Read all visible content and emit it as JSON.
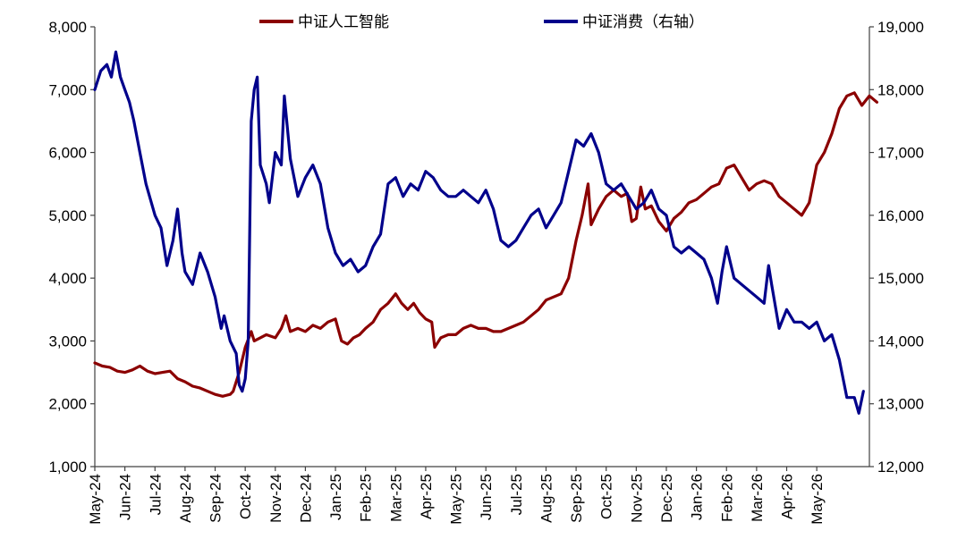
{
  "chart_data": {
    "type": "line",
    "title": "",
    "legend_position": "top",
    "grid": false,
    "categories": [
      "May-24",
      "Jun-24",
      "Jul-24",
      "Aug-24",
      "Sep-24",
      "Oct-24",
      "Nov-24",
      "Dec-24",
      "Jan-25",
      "Feb-25",
      "Mar-25",
      "Apr-25",
      "May-25",
      "Jun-25",
      "Jul-25",
      "Aug-25",
      "Sep-25",
      "Oct-25",
      "Nov-25",
      "Dec-25",
      "Jan-26",
      "Feb-26",
      "Mar-26",
      "Apr-26",
      "May-26"
    ],
    "y_left": {
      "ylim": [
        1000,
        8000
      ],
      "ticks": [
        1000,
        2000,
        3000,
        4000,
        5000,
        6000,
        7000,
        8000
      ],
      "tick_labels": [
        "1,000",
        "2,000",
        "3,000",
        "4,000",
        "5,000",
        "6,000",
        "7,000",
        "8,000"
      ]
    },
    "y_right": {
      "ylim": [
        12000,
        19000
      ],
      "ticks": [
        12000,
        13000,
        14000,
        15000,
        16000,
        17000,
        18000,
        19000
      ],
      "tick_labels": [
        "12,000",
        "13,000",
        "14,000",
        "15,000",
        "16,000",
        "17,000",
        "18,000",
        "19,000"
      ]
    },
    "series": [
      {
        "name": "中证人工智能",
        "axis": "left",
        "color": "#8B0000",
        "points": [
          [
            0,
            2650
          ],
          [
            0.25,
            2600
          ],
          [
            0.5,
            2580
          ],
          [
            0.75,
            2520
          ],
          [
            1,
            2500
          ],
          [
            1.25,
            2540
          ],
          [
            1.5,
            2600
          ],
          [
            1.75,
            2520
          ],
          [
            2,
            2480
          ],
          [
            2.25,
            2500
          ],
          [
            2.5,
            2520
          ],
          [
            2.75,
            2400
          ],
          [
            3,
            2350
          ],
          [
            3.25,
            2280
          ],
          [
            3.5,
            2250
          ],
          [
            3.75,
            2200
          ],
          [
            4,
            2150
          ],
          [
            4.25,
            2120
          ],
          [
            4.5,
            2150
          ],
          [
            4.6,
            2200
          ],
          [
            4.8,
            2500
          ],
          [
            5,
            2900
          ],
          [
            5.2,
            3150
          ],
          [
            5.3,
            3000
          ],
          [
            5.5,
            3050
          ],
          [
            5.7,
            3100
          ],
          [
            6,
            3050
          ],
          [
            6.2,
            3200
          ],
          [
            6.35,
            3400
          ],
          [
            6.5,
            3150
          ],
          [
            6.75,
            3200
          ],
          [
            7,
            3150
          ],
          [
            7.25,
            3250
          ],
          [
            7.5,
            3200
          ],
          [
            7.75,
            3300
          ],
          [
            8,
            3350
          ],
          [
            8.2,
            3000
          ],
          [
            8.4,
            2950
          ],
          [
            8.6,
            3050
          ],
          [
            8.8,
            3100
          ],
          [
            9,
            3200
          ],
          [
            9.25,
            3300
          ],
          [
            9.5,
            3500
          ],
          [
            9.75,
            3600
          ],
          [
            10,
            3750
          ],
          [
            10.2,
            3600
          ],
          [
            10.4,
            3500
          ],
          [
            10.6,
            3600
          ],
          [
            10.8,
            3450
          ],
          [
            11,
            3350
          ],
          [
            11.2,
            3300
          ],
          [
            11.3,
            2900
          ],
          [
            11.5,
            3050
          ],
          [
            11.75,
            3100
          ],
          [
            12,
            3100
          ],
          [
            12.25,
            3200
          ],
          [
            12.5,
            3250
          ],
          [
            12.75,
            3200
          ],
          [
            13,
            3200
          ],
          [
            13.25,
            3150
          ],
          [
            13.5,
            3150
          ],
          [
            13.75,
            3200
          ],
          [
            14,
            3250
          ],
          [
            14.25,
            3300
          ],
          [
            14.5,
            3400
          ],
          [
            14.75,
            3500
          ],
          [
            15,
            3650
          ],
          [
            15.25,
            3700
          ],
          [
            15.5,
            3750
          ],
          [
            15.75,
            4000
          ],
          [
            16,
            4600
          ],
          [
            16.2,
            5000
          ],
          [
            16.4,
            5500
          ],
          [
            16.5,
            4850
          ],
          [
            16.75,
            5100
          ],
          [
            17,
            5300
          ],
          [
            17.25,
            5400
          ],
          [
            17.5,
            5300
          ],
          [
            17.7,
            5350
          ],
          [
            17.85,
            4900
          ],
          [
            18,
            4950
          ],
          [
            18.15,
            5450
          ],
          [
            18.3,
            5100
          ],
          [
            18.5,
            5150
          ],
          [
            18.75,
            4900
          ],
          [
            19,
            4750
          ],
          [
            19.25,
            4950
          ],
          [
            19.5,
            5050
          ],
          [
            19.75,
            5200
          ],
          [
            20,
            5250
          ],
          [
            20.25,
            5350
          ],
          [
            20.5,
            5450
          ],
          [
            20.75,
            5500
          ],
          [
            21,
            5750
          ],
          [
            21.25,
            5800
          ],
          [
            21.5,
            5600
          ],
          [
            21.75,
            5400
          ],
          [
            22,
            5500
          ],
          [
            22.25,
            5550
          ],
          [
            22.5,
            5500
          ],
          [
            22.75,
            5300
          ],
          [
            23,
            5200
          ],
          [
            23.25,
            5100
          ],
          [
            23.5,
            5000
          ],
          [
            23.75,
            5200
          ],
          [
            24,
            5800
          ],
          [
            24.25,
            6000
          ],
          [
            24.5,
            6300
          ],
          [
            24.75,
            6700
          ],
          [
            25,
            6900
          ],
          [
            25.25,
            6950
          ],
          [
            25.5,
            6750
          ],
          [
            25.75,
            6900
          ],
          [
            26,
            6800
          ]
        ]
      },
      {
        "name": "中证消费（右轴）",
        "axis": "right",
        "color": "#00008B",
        "points": [
          [
            0,
            18000
          ],
          [
            0.2,
            18300
          ],
          [
            0.4,
            18400
          ],
          [
            0.55,
            18200
          ],
          [
            0.7,
            18600
          ],
          [
            0.85,
            18200
          ],
          [
            1,
            18000
          ],
          [
            1.15,
            17800
          ],
          [
            1.3,
            17500
          ],
          [
            1.5,
            17000
          ],
          [
            1.7,
            16500
          ],
          [
            2,
            16000
          ],
          [
            2.2,
            15800
          ],
          [
            2.4,
            15200
          ],
          [
            2.6,
            15600
          ],
          [
            2.75,
            16100
          ],
          [
            2.9,
            15400
          ],
          [
            3,
            15100
          ],
          [
            3.25,
            14900
          ],
          [
            3.5,
            15400
          ],
          [
            3.75,
            15100
          ],
          [
            4,
            14700
          ],
          [
            4.2,
            14200
          ],
          [
            4.3,
            14400
          ],
          [
            4.5,
            14000
          ],
          [
            4.7,
            13800
          ],
          [
            4.8,
            13300
          ],
          [
            4.9,
            13200
          ],
          [
            5,
            13400
          ],
          [
            5.1,
            14000
          ],
          [
            5.2,
            17500
          ],
          [
            5.3,
            18000
          ],
          [
            5.4,
            18200
          ],
          [
            5.5,
            16800
          ],
          [
            5.7,
            16500
          ],
          [
            5.8,
            16200
          ],
          [
            6,
            17000
          ],
          [
            6.2,
            16800
          ],
          [
            6.3,
            17900
          ],
          [
            6.5,
            16900
          ],
          [
            6.75,
            16300
          ],
          [
            7,
            16600
          ],
          [
            7.25,
            16800
          ],
          [
            7.5,
            16500
          ],
          [
            7.75,
            15800
          ],
          [
            8,
            15400
          ],
          [
            8.25,
            15200
          ],
          [
            8.5,
            15300
          ],
          [
            8.75,
            15100
          ],
          [
            9,
            15200
          ],
          [
            9.25,
            15500
          ],
          [
            9.5,
            15700
          ],
          [
            9.75,
            16500
          ],
          [
            10,
            16600
          ],
          [
            10.25,
            16300
          ],
          [
            10.5,
            16500
          ],
          [
            10.75,
            16400
          ],
          [
            11,
            16700
          ],
          [
            11.25,
            16600
          ],
          [
            11.5,
            16400
          ],
          [
            11.75,
            16300
          ],
          [
            12,
            16300
          ],
          [
            12.25,
            16400
          ],
          [
            12.5,
            16300
          ],
          [
            12.75,
            16200
          ],
          [
            13,
            16400
          ],
          [
            13.25,
            16100
          ],
          [
            13.5,
            15600
          ],
          [
            13.75,
            15500
          ],
          [
            14,
            15600
          ],
          [
            14.25,
            15800
          ],
          [
            14.5,
            16000
          ],
          [
            14.75,
            16100
          ],
          [
            15,
            15800
          ],
          [
            15.25,
            16000
          ],
          [
            15.5,
            16200
          ],
          [
            15.75,
            16700
          ],
          [
            16,
            17200
          ],
          [
            16.25,
            17100
          ],
          [
            16.5,
            17300
          ],
          [
            16.75,
            17000
          ],
          [
            17,
            16500
          ],
          [
            17.25,
            16400
          ],
          [
            17.5,
            16500
          ],
          [
            17.75,
            16300
          ],
          [
            18,
            16100
          ],
          [
            18.25,
            16200
          ],
          [
            18.5,
            16400
          ],
          [
            18.75,
            16100
          ],
          [
            19,
            16000
          ],
          [
            19.25,
            15500
          ],
          [
            19.5,
            15400
          ],
          [
            19.75,
            15500
          ],
          [
            20,
            15400
          ],
          [
            20.25,
            15300
          ],
          [
            20.5,
            15000
          ],
          [
            20.7,
            14600
          ],
          [
            20.85,
            15100
          ],
          [
            21,
            15500
          ],
          [
            21.25,
            15000
          ],
          [
            21.5,
            14900
          ],
          [
            21.75,
            14800
          ],
          [
            22,
            14700
          ],
          [
            22.25,
            14600
          ],
          [
            22.4,
            15200
          ],
          [
            22.5,
            14900
          ],
          [
            22.75,
            14200
          ],
          [
            23,
            14500
          ],
          [
            23.25,
            14300
          ],
          [
            23.5,
            14300
          ],
          [
            23.75,
            14200
          ],
          [
            24,
            14300
          ],
          [
            24.25,
            14000
          ],
          [
            24.5,
            14100
          ],
          [
            24.75,
            13700
          ],
          [
            25,
            13100
          ],
          [
            25.25,
            13100
          ],
          [
            25.4,
            12850
          ],
          [
            25.55,
            13200
          ]
        ]
      }
    ]
  }
}
